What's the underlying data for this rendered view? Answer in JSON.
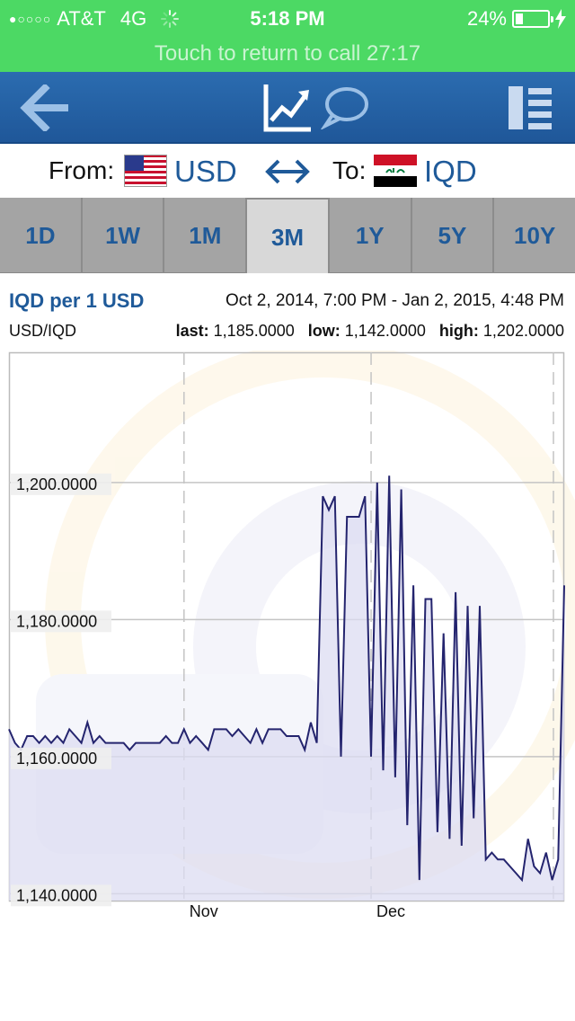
{
  "status_bar": {
    "carrier": "AT&T",
    "network": "4G",
    "time": "5:18 PM",
    "battery": "24%",
    "battery_level": 0.24
  },
  "call_bar": {
    "text": "Touch to return to call  27:17"
  },
  "nav": {
    "icons": [
      "back-arrow-icon",
      "chart-icon",
      "chat-bubble-icon",
      "menu-list-icon"
    ]
  },
  "converter": {
    "from_label": "From:",
    "from_currency": "USD",
    "to_label": "To:",
    "to_currency": "IQD"
  },
  "tabs": [
    {
      "label": "1D",
      "active": false
    },
    {
      "label": "1W",
      "active": false
    },
    {
      "label": "1M",
      "active": false
    },
    {
      "label": "3M",
      "active": true
    },
    {
      "label": "1Y",
      "active": false
    },
    {
      "label": "5Y",
      "active": false
    },
    {
      "label": "10Y",
      "active": false
    }
  ],
  "header": {
    "title": "IQD per 1 USD",
    "range": "Oct 2, 2014, 7:00 PM - Jan 2, 2015, 4:48 PM",
    "pair": "USD/IQD",
    "last_label": "last:",
    "last_value": "1,185.0000",
    "low_label": "low:",
    "low_value": "1,142.0000",
    "high_label": "high:",
    "high_value": "1,202.0000"
  },
  "chart_data": {
    "type": "line",
    "ylim": [
      1139,
      1219
    ],
    "yticks": [
      1140,
      1160,
      1180,
      1200
    ],
    "ytick_labels": [
      "1,140.0000",
      "1,160.0000",
      "1,180.0000",
      "1,200.0000"
    ],
    "xlim": [
      0,
      92
    ],
    "xticks": [
      29,
      60
    ],
    "xtick_labels": [
      "Nov",
      "Dec"
    ],
    "series_color": "#24246e",
    "fill_color": "#dcdcf2",
    "x": [
      0,
      1,
      2,
      3,
      4,
      5,
      6,
      7,
      8,
      9,
      10,
      11,
      12,
      13,
      14,
      15,
      16,
      17,
      18,
      19,
      20,
      21,
      22,
      23,
      24,
      25,
      26,
      27,
      28,
      29,
      30,
      31,
      32,
      33,
      34,
      35,
      36,
      37,
      38,
      39,
      40,
      41,
      42,
      43,
      44,
      45,
      46,
      47,
      48,
      49,
      50,
      51,
      52,
      53,
      54,
      55,
      56,
      57,
      58,
      59,
      60,
      61,
      62,
      63,
      64,
      65,
      66,
      67,
      68,
      69,
      70,
      71,
      72,
      73,
      74,
      75,
      76,
      77,
      78,
      79,
      80,
      81,
      82,
      83,
      84,
      85,
      86,
      87,
      88,
      89,
      90,
      91,
      92
    ],
    "values": [
      1164,
      1162,
      1161,
      1163,
      1163,
      1162,
      1163,
      1162,
      1163,
      1162,
      1164,
      1163,
      1162,
      1165,
      1162,
      1163,
      1162,
      1162,
      1162,
      1162,
      1161,
      1162,
      1162,
      1162,
      1162,
      1162,
      1163,
      1162,
      1162,
      1164,
      1162,
      1163,
      1162,
      1161,
      1164,
      1164,
      1164,
      1163,
      1164,
      1163,
      1162,
      1164,
      1162,
      1164,
      1164,
      1164,
      1163,
      1163,
      1163,
      1161,
      1165,
      1162,
      1198,
      1196,
      1198,
      1160,
      1195,
      1195,
      1195,
      1198,
      1160,
      1200,
      1158,
      1201,
      1157,
      1199,
      1150,
      1185,
      1142,
      1183,
      1183,
      1149,
      1178,
      1148,
      1184,
      1147,
      1182,
      1151,
      1182,
      1145,
      1146,
      1145,
      1145,
      1144,
      1143,
      1142,
      1148,
      1144,
      1143,
      1146,
      1142,
      1145,
      1185
    ]
  }
}
